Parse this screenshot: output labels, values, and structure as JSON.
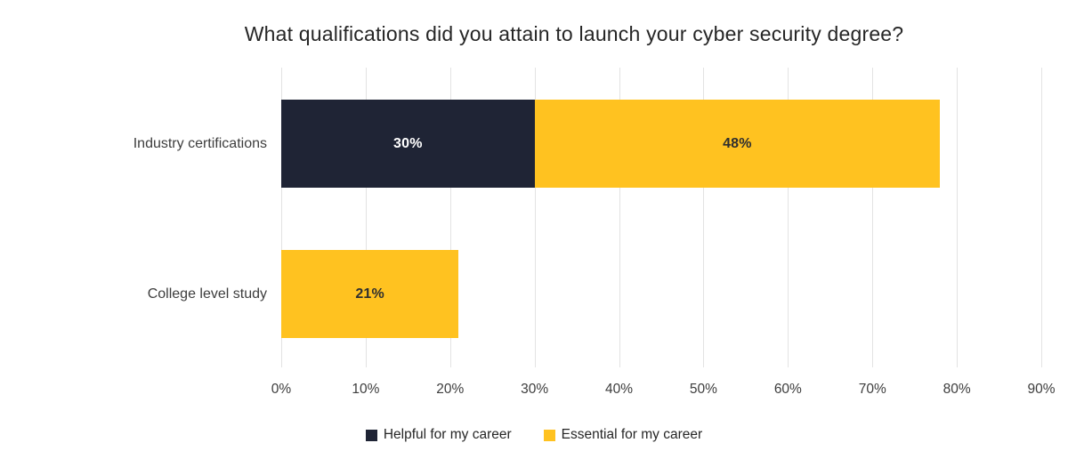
{
  "title": "What qualifications did you attain to launch your cyber security degree?",
  "colors": {
    "background": "#ffffff",
    "gridline": "#e3e3e3",
    "title_text": "#262626",
    "axis_text": "#3d3d3d"
  },
  "chart_data": {
    "type": "bar",
    "orientation": "horizontal",
    "stacked": true,
    "title": "What qualifications did you attain to launch your cyber security degree?",
    "categories": [
      "Industry certifications",
      "College level study"
    ],
    "series": [
      {
        "key": "helpful",
        "name": "Helpful for my career",
        "color": "#1f2435",
        "label_color": "#ffffff",
        "values": [
          30,
          0
        ]
      },
      {
        "key": "essential",
        "name": "Essential for my career",
        "color": "#ffc220",
        "label_color": "#2f2f2f",
        "values": [
          48,
          21
        ]
      }
    ],
    "value_suffix": "%",
    "xlabel": "",
    "ylabel": "",
    "xlim": [
      0,
      90
    ],
    "xticks": [
      "0%",
      "10%",
      "20%",
      "30%",
      "40%",
      "50%",
      "60%",
      "70%",
      "80%",
      "90%"
    ],
    "grid": "vertical",
    "legend_position": "bottom-center"
  }
}
